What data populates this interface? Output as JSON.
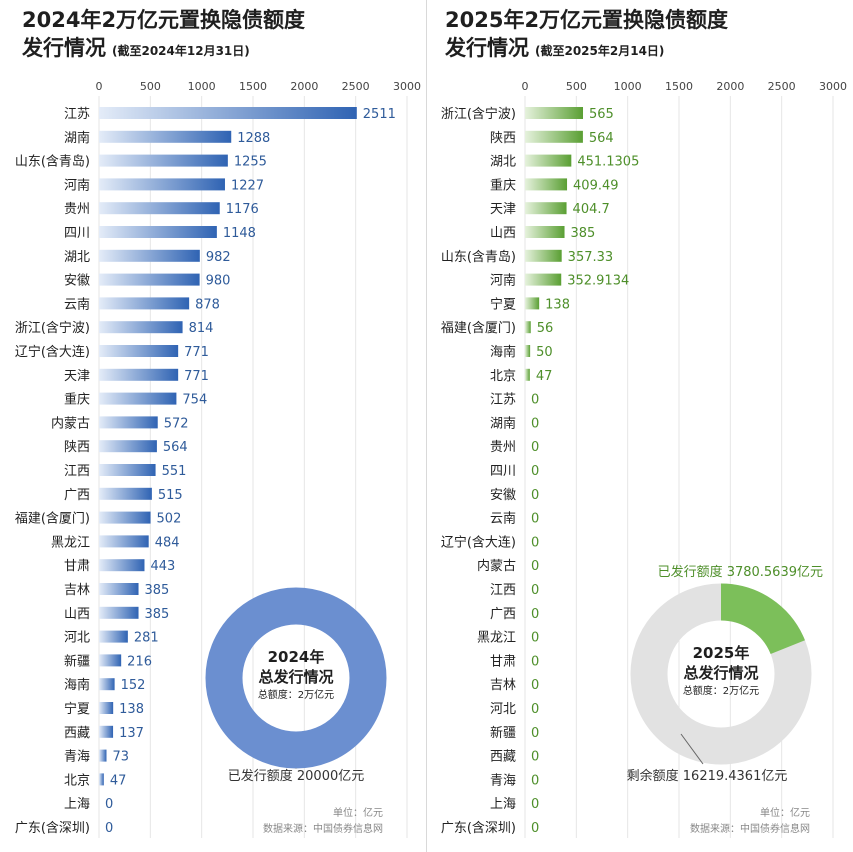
{
  "panels": [
    {
      "title_line1": "2024年2万亿元置换隐债额度",
      "title_line2": "发行情况",
      "title_note": "(截至2024年12月31日)",
      "donut": {
        "year_label": "2024年",
        "center_title": "总发行情况",
        "center_sub": "总额度：2万亿元",
        "issued_label": "已发行额度 20000亿元",
        "remaining_label": "",
        "issued_value": 20000,
        "total_value": 20000
      },
      "unit_note": "单位：亿元",
      "source_note": "数据来源：中国债券信息网"
    },
    {
      "title_line1": "2025年2万亿元置换隐债额度",
      "title_line2": "发行情况",
      "title_note": "(截至2025年2月14日)",
      "donut": {
        "year_label": "2025年",
        "center_title": "总发行情况",
        "center_sub": "总额度：2万亿元",
        "issued_label": "已发行额度 3780.5639亿元",
        "remaining_label": "剩余额度 16219.4361亿元",
        "issued_value": 3780.5639,
        "total_value": 20000
      },
      "unit_note": "单位：亿元",
      "source_note": "数据来源：中国债券信息网"
    }
  ],
  "colors": {
    "bar_2024_start": "#e4ecf8",
    "bar_2024_end": "#2f63b3",
    "label_2024": "#2f5b9a",
    "bar_2025_start": "#e6f2dd",
    "bar_2025_end": "#5a9f33",
    "label_2025": "#4e8f2a",
    "donut_2024": "#6b8fd0",
    "donut_2025_issued": "#7cbf5a",
    "donut_2025_remaining": "#e2e2e2",
    "grid": "#e6e6e6",
    "divider": "#d9d9d9"
  },
  "chart_data": [
    {
      "type": "bar",
      "orientation": "horizontal",
      "title": "2024年2万亿元置换隐债额度发行情况",
      "unit": "亿元",
      "xlim": [
        0,
        3000
      ],
      "xticks": [
        "0",
        "500",
        "1000",
        "1500",
        "2000",
        "2500",
        "3000"
      ],
      "grid": true,
      "categories": [
        "江苏",
        "湖南",
        "山东(含青岛)",
        "河南",
        "贵州",
        "四川",
        "湖北",
        "安徽",
        "云南",
        "浙江(含宁波)",
        "辽宁(含大连)",
        "天津",
        "重庆",
        "内蒙古",
        "陕西",
        "江西",
        "广西",
        "福建(含厦门)",
        "黑龙江",
        "甘肃",
        "吉林",
        "山西",
        "河北",
        "新疆",
        "海南",
        "宁夏",
        "西藏",
        "青海",
        "北京",
        "上海",
        "广东(含深圳)"
      ],
      "values": [
        2511,
        1288,
        1255,
        1227,
        1176,
        1148,
        982,
        980,
        878,
        814,
        771,
        771,
        754,
        572,
        564,
        551,
        515,
        502,
        484,
        443,
        385,
        385,
        281,
        216,
        152,
        138,
        137,
        73,
        47,
        0,
        0
      ],
      "value_labels": [
        "2511",
        "1288",
        "1255",
        "1227",
        "1176",
        "1148",
        "982",
        "980",
        "878",
        "814",
        "771",
        "771",
        "754",
        "572",
        "564",
        "551",
        "515",
        "502",
        "484",
        "443",
        "385",
        "385",
        "281",
        "216",
        "152",
        "138",
        "137",
        "73",
        "47",
        "0",
        "0"
      ]
    },
    {
      "type": "bar",
      "orientation": "horizontal",
      "title": "2025年2万亿元置换隐债额度发行情况",
      "unit": "亿元",
      "xlim": [
        0,
        3000
      ],
      "xticks": [
        "0",
        "500",
        "1000",
        "1500",
        "2000",
        "2500",
        "3000"
      ],
      "grid": true,
      "categories": [
        "浙江(含宁波)",
        "陕西",
        "湖北",
        "重庆",
        "天津",
        "山西",
        "山东(含青岛)",
        "河南",
        "宁夏",
        "福建(含厦门)",
        "海南",
        "北京",
        "江苏",
        "湖南",
        "贵州",
        "四川",
        "安徽",
        "云南",
        "辽宁(含大连)",
        "内蒙古",
        "江西",
        "广西",
        "黑龙江",
        "甘肃",
        "吉林",
        "河北",
        "新疆",
        "西藏",
        "青海",
        "上海",
        "广东(含深圳)"
      ],
      "values": [
        565,
        564,
        451.1305,
        409.49,
        404.7,
        385,
        357.33,
        352.9134,
        138,
        56,
        50,
        47,
        0,
        0,
        0,
        0,
        0,
        0,
        0,
        0,
        0,
        0,
        0,
        0,
        0,
        0,
        0,
        0,
        0,
        0,
        0
      ],
      "value_labels": [
        "565",
        "564",
        "451.1305",
        "409.49",
        "404.7",
        "385",
        "357.33",
        "352.9134",
        "138",
        "56",
        "50",
        "47",
        "0",
        "0",
        "0",
        "0",
        "0",
        "0",
        "0",
        "0",
        "0",
        "0",
        "0",
        "0",
        "0",
        "0",
        "0",
        "0",
        "0",
        "0",
        "0"
      ]
    }
  ]
}
